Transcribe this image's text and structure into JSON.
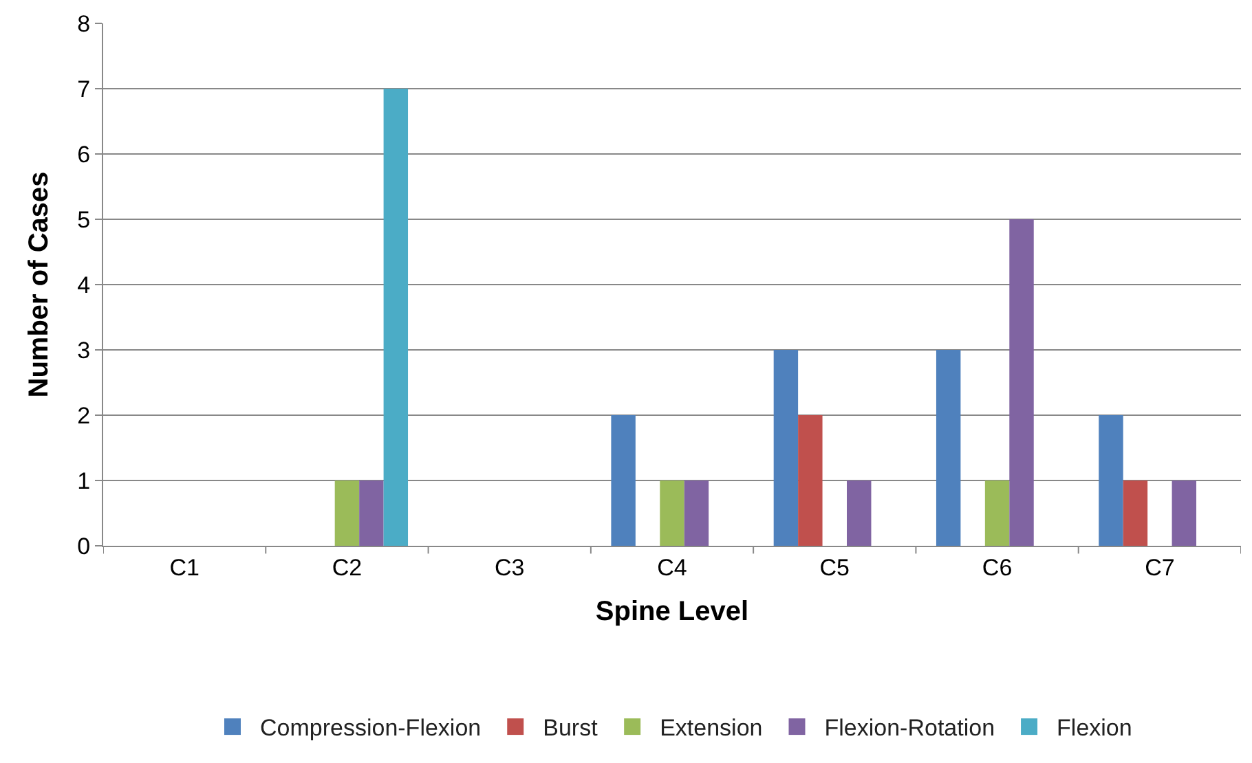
{
  "chart_data": {
    "type": "bar",
    "xlabel": "Spine Level",
    "ylabel": "Number of Cases",
    "categories": [
      "C1",
      "C2",
      "C3",
      "C4",
      "C5",
      "C6",
      "C7"
    ],
    "series": [
      {
        "name": "Compression-Flexion",
        "color": "#4f81bd",
        "values": [
          0,
          0,
          0,
          2,
          3,
          3,
          2
        ]
      },
      {
        "name": "Burst",
        "color": "#c0504d",
        "values": [
          0,
          0,
          0,
          0,
          2,
          0,
          1
        ]
      },
      {
        "name": "Extension",
        "color": "#9bbb59",
        "values": [
          0,
          1,
          0,
          1,
          0,
          1,
          0
        ]
      },
      {
        "name": "Flexion-Rotation",
        "color": "#8064a2",
        "values": [
          0,
          1,
          0,
          1,
          1,
          5,
          1
        ]
      },
      {
        "name": "Flexion",
        "color": "#4bacc6",
        "values": [
          0,
          7,
          0,
          0,
          0,
          0,
          0
        ]
      }
    ],
    "ylim": [
      0,
      8
    ],
    "yticks": [
      0,
      1,
      2,
      3,
      4,
      5,
      6,
      7,
      8
    ],
    "grid": "y",
    "legend": "bottom"
  }
}
